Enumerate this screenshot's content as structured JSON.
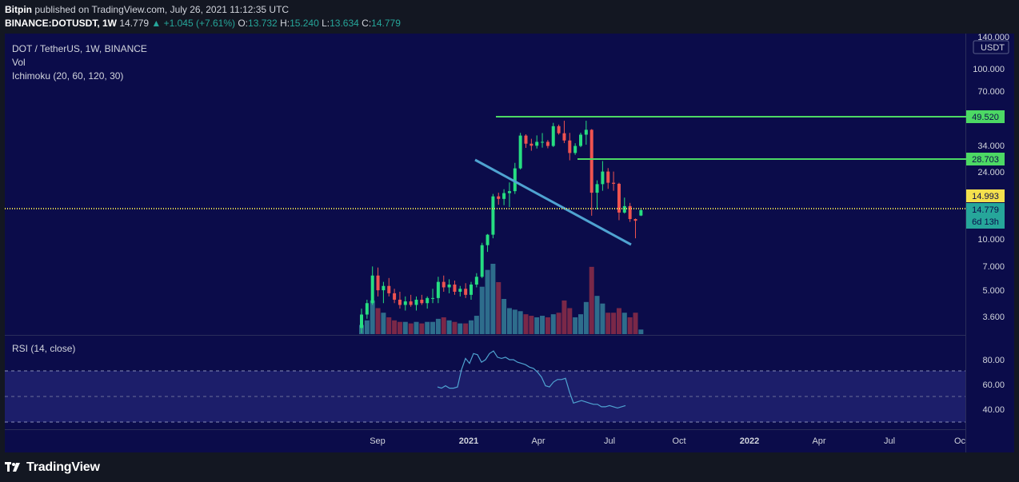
{
  "header": {
    "publisher": "Bitpin",
    "published_text": "published on TradingView.com, July 26, 2021 11:12:35 UTC",
    "symbol_line": "BINANCE:DOTUSDT, 1W",
    "last_price": "14.779",
    "change": "▲ +1.045 (+7.61%)",
    "o_label": "O:",
    "o_value": "13.732",
    "h_label": "H:",
    "h_value": "15.240",
    "l_label": "L:",
    "l_value": "13.634",
    "c_label": "C:",
    "c_value": "14.779"
  },
  "legend": {
    "title": "DOT / TetherUS, 1W, BINANCE",
    "vol": "Vol",
    "ichimoku": "Ichimoku (20, 60, 120, 30)",
    "rsi": "RSI (14, close)"
  },
  "colors": {
    "background": "#0b0c4a",
    "frame": "#131722",
    "up": "#26de81",
    "down": "#ef5350",
    "vol_up": "#2e6d8c",
    "vol_down": "#7a2848",
    "hline": "#4cd964",
    "trendline": "#4fa3d1",
    "price_line": "#f4e04d",
    "rsi_line": "#4fa3d1",
    "rsi_band": "#1c1e6a"
  },
  "price_axis": {
    "unit": "USDT",
    "top_label": "140.000",
    "ticks": [
      "100.000",
      "70.000",
      "34.000",
      "24.000",
      "10.000",
      "7.000",
      "5.000",
      "3.600"
    ],
    "tags": [
      {
        "text": "49.520",
        "style": "green"
      },
      {
        "text": "28.703",
        "style": "green"
      },
      {
        "text": "14.993",
        "style": "yellow"
      },
      {
        "text": "14.779",
        "style": "green"
      },
      {
        "text": "6d 13h",
        "style": "green"
      }
    ]
  },
  "rsi_axis": {
    "ticks": [
      "80.00",
      "60.00",
      "40.00"
    ]
  },
  "time_axis": {
    "ticks": [
      "Sep",
      "2021",
      "Apr",
      "Jul",
      "Oct",
      "2022",
      "Apr",
      "Jul",
      "Oc"
    ]
  },
  "footer": {
    "brand": "TradingView"
  },
  "chart_data": {
    "type": "candlestick",
    "timeframe": "1W",
    "y_scale": "log",
    "candles": [
      {
        "o": 3.0,
        "h": 3.9,
        "l": 2.8,
        "c": 3.6
      },
      {
        "o": 3.6,
        "h": 4.4,
        "l": 3.4,
        "c": 4.2
      },
      {
        "o": 4.2,
        "h": 6.9,
        "l": 4.1,
        "c": 6.1
      },
      {
        "o": 6.1,
        "h": 6.8,
        "l": 4.6,
        "c": 5.0
      },
      {
        "o": 5.0,
        "h": 5.6,
        "l": 4.2,
        "c": 5.3
      },
      {
        "o": 5.3,
        "h": 5.9,
        "l": 4.6,
        "c": 4.8
      },
      {
        "o": 4.8,
        "h": 5.1,
        "l": 4.2,
        "c": 4.4
      },
      {
        "o": 4.4,
        "h": 4.9,
        "l": 3.9,
        "c": 4.1
      },
      {
        "o": 4.1,
        "h": 4.6,
        "l": 3.8,
        "c": 4.3
      },
      {
        "o": 4.3,
        "h": 4.7,
        "l": 4.0,
        "c": 4.1
      },
      {
        "o": 4.1,
        "h": 4.6,
        "l": 3.8,
        "c": 4.4
      },
      {
        "o": 4.4,
        "h": 4.7,
        "l": 4.1,
        "c": 4.2
      },
      {
        "o": 4.2,
        "h": 4.6,
        "l": 3.9,
        "c": 4.5
      },
      {
        "o": 4.5,
        "h": 5.1,
        "l": 4.2,
        "c": 4.5
      },
      {
        "o": 4.5,
        "h": 6.0,
        "l": 4.2,
        "c": 5.6
      },
      {
        "o": 5.6,
        "h": 6.1,
        "l": 4.9,
        "c": 5.2
      },
      {
        "o": 5.2,
        "h": 5.8,
        "l": 4.8,
        "c": 5.4
      },
      {
        "o": 5.4,
        "h": 5.7,
        "l": 4.7,
        "c": 4.9
      },
      {
        "o": 4.9,
        "h": 5.3,
        "l": 4.6,
        "c": 5.1
      },
      {
        "o": 5.1,
        "h": 5.5,
        "l": 4.5,
        "c": 4.7
      },
      {
        "o": 4.7,
        "h": 5.6,
        "l": 4.4,
        "c": 5.4
      },
      {
        "o": 5.4,
        "h": 6.3,
        "l": 5.2,
        "c": 6.0
      },
      {
        "o": 6.0,
        "h": 9.5,
        "l": 5.9,
        "c": 9.2
      },
      {
        "o": 9.2,
        "h": 10.7,
        "l": 8.4,
        "c": 10.6
      },
      {
        "o": 10.6,
        "h": 18.4,
        "l": 10.1,
        "c": 17.8
      },
      {
        "o": 17.8,
        "h": 18.7,
        "l": 15.9,
        "c": 17.2
      },
      {
        "o": 17.2,
        "h": 19.6,
        "l": 15.8,
        "c": 18.6
      },
      {
        "o": 18.6,
        "h": 21.5,
        "l": 15.4,
        "c": 19.1
      },
      {
        "o": 19.1,
        "h": 28.0,
        "l": 18.4,
        "c": 26.0
      },
      {
        "o": 26.0,
        "h": 42.0,
        "l": 25.6,
        "c": 40.5
      },
      {
        "o": 40.5,
        "h": 41.2,
        "l": 34.3,
        "c": 36.3
      },
      {
        "o": 36.3,
        "h": 38.8,
        "l": 33.0,
        "c": 35.3
      },
      {
        "o": 35.3,
        "h": 40.6,
        "l": 34.0,
        "c": 37.2
      },
      {
        "o": 37.2,
        "h": 41.9,
        "l": 34.4,
        "c": 37.2
      },
      {
        "o": 37.2,
        "h": 38.1,
        "l": 34.1,
        "c": 35.2
      },
      {
        "o": 35.2,
        "h": 48.1,
        "l": 34.7,
        "c": 46.0
      },
      {
        "o": 46.0,
        "h": 47.0,
        "l": 41.0,
        "c": 41.8
      },
      {
        "o": 41.8,
        "h": 49.5,
        "l": 36.6,
        "c": 37.9
      },
      {
        "o": 37.9,
        "h": 42.0,
        "l": 29.0,
        "c": 32.0
      },
      {
        "o": 32.0,
        "h": 36.5,
        "l": 31.2,
        "c": 35.2
      },
      {
        "o": 35.2,
        "h": 42.1,
        "l": 34.6,
        "c": 41.0
      },
      {
        "o": 41.0,
        "h": 49.5,
        "l": 35.8,
        "c": 43.8
      },
      {
        "o": 43.8,
        "h": 44.2,
        "l": 13.7,
        "c": 18.7
      },
      {
        "o": 18.7,
        "h": 22.1,
        "l": 14.9,
        "c": 21.0
      },
      {
        "o": 21.0,
        "h": 28.7,
        "l": 19.2,
        "c": 24.9
      },
      {
        "o": 24.9,
        "h": 26.1,
        "l": 19.7,
        "c": 21.4
      },
      {
        "o": 21.4,
        "h": 24.9,
        "l": 19.2,
        "c": 21.1
      },
      {
        "o": 21.1,
        "h": 21.4,
        "l": 12.9,
        "c": 14.3
      },
      {
        "o": 14.3,
        "h": 17.5,
        "l": 14.1,
        "c": 15.6
      },
      {
        "o": 15.6,
        "h": 16.3,
        "l": 12.6,
        "c": 13.1
      },
      {
        "o": 13.1,
        "h": 13.2,
        "l": 10.1,
        "c": 12.8
      },
      {
        "o": 13.732,
        "h": 15.24,
        "l": 13.634,
        "c": 14.779
      }
    ],
    "volume": [
      6,
      9,
      22,
      17,
      14,
      11,
      9,
      8,
      8,
      7,
      8,
      7,
      8,
      8,
      10,
      11,
      9,
      8,
      7,
      7,
      9,
      12,
      31,
      42,
      46,
      34,
      23,
      17,
      16,
      15,
      13,
      12,
      11,
      12,
      11,
      13,
      14,
      22,
      17,
      11,
      13,
      21,
      44,
      25,
      20,
      14,
      14,
      17,
      14,
      11,
      14,
      3
    ],
    "rsi": [
      58,
      57,
      59,
      57,
      57,
      58,
      72,
      81,
      77,
      85,
      84,
      78,
      80,
      85,
      87,
      82,
      81,
      82,
      80,
      80,
      78,
      77,
      76,
      74,
      73,
      70,
      66,
      59,
      58,
      62,
      64,
      64,
      65,
      54,
      45,
      46,
      47,
      46,
      45,
      44,
      44,
      42,
      42,
      43,
      42,
      41,
      42,
      43
    ],
    "horizontal_lines": [
      49.52,
      28.703
    ],
    "current_price": 14.779,
    "previous_close_marker": 14.993,
    "trendline": [
      {
        "x_week": 19,
        "price": 28.0
      },
      {
        "x_week": 47,
        "price": 9.6
      }
    ],
    "rsi_bands": [
      70,
      50,
      30
    ]
  }
}
